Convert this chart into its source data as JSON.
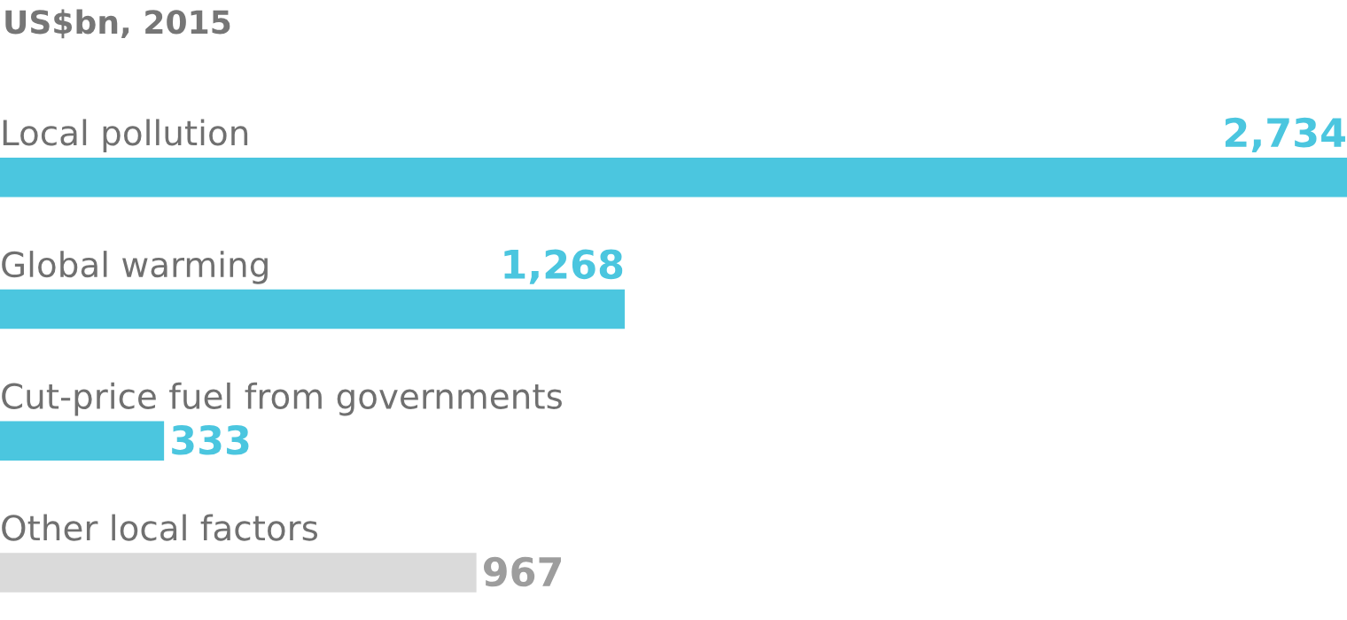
{
  "chart_data": {
    "type": "bar",
    "orientation": "horizontal",
    "title": "US$bn, 2015",
    "categories": [
      "Local pollution",
      "Global warming",
      "Cut-price fuel from governments",
      "Other local factors"
    ],
    "values": [
      2734,
      1268,
      333,
      967
    ],
    "value_labels": [
      "2,734",
      "1,268",
      "333",
      "967"
    ],
    "colors": [
      "#4bc6df",
      "#4bc6df",
      "#4bc6df",
      "#dadada"
    ],
    "xlim": [
      0,
      2734
    ]
  }
}
